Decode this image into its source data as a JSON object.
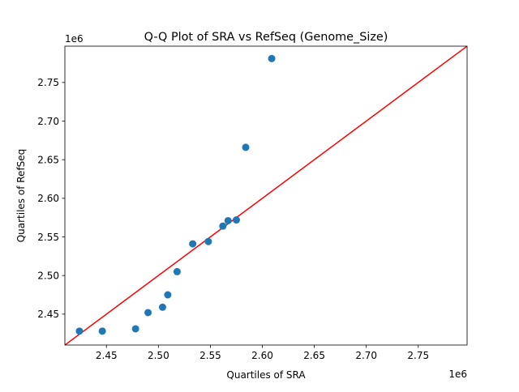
{
  "chart_data": {
    "type": "scatter",
    "title": "Q-Q Plot of SRA vs RefSeq (Genome_Size)",
    "xlabel": "Quartiles of SRA",
    "ylabel": "Quartiles of RefSeq",
    "x_offset_label": "1e6",
    "y_offset_label": "1e6",
    "xlim": [
      2.41,
      2.797
    ],
    "ylim": [
      2.41,
      2.797
    ],
    "x_ticks": [
      2.45,
      2.5,
      2.55,
      2.6,
      2.65,
      2.7,
      2.75
    ],
    "y_ticks": [
      2.45,
      2.5,
      2.55,
      2.6,
      2.65,
      2.7,
      2.75
    ],
    "x_tick_labels": [
      "2.45",
      "2.50",
      "2.55",
      "2.60",
      "2.65",
      "2.70",
      "2.75"
    ],
    "y_tick_labels": [
      "2.45",
      "2.50",
      "2.55",
      "2.60",
      "2.65",
      "2.70",
      "2.75"
    ],
    "grid": false,
    "series": [
      {
        "marker_color": "#1f77b4",
        "points": [
          {
            "x": 2.424,
            "y": 2.428
          },
          {
            "x": 2.446,
            "y": 2.428
          },
          {
            "x": 2.478,
            "y": 2.431
          },
          {
            "x": 2.49,
            "y": 2.452
          },
          {
            "x": 2.504,
            "y": 2.459
          },
          {
            "x": 2.509,
            "y": 2.475
          },
          {
            "x": 2.518,
            "y": 2.505
          },
          {
            "x": 2.533,
            "y": 2.541
          },
          {
            "x": 2.548,
            "y": 2.544
          },
          {
            "x": 2.562,
            "y": 2.564
          },
          {
            "x": 2.567,
            "y": 2.571
          },
          {
            "x": 2.575,
            "y": 2.572
          },
          {
            "x": 2.584,
            "y": 2.666
          },
          {
            "x": 2.609,
            "y": 2.781
          }
        ]
      }
    ],
    "reference_line": {
      "color": "#ff0000",
      "from": [
        2.41,
        2.41
      ],
      "to": [
        2.797,
        2.797
      ]
    }
  }
}
